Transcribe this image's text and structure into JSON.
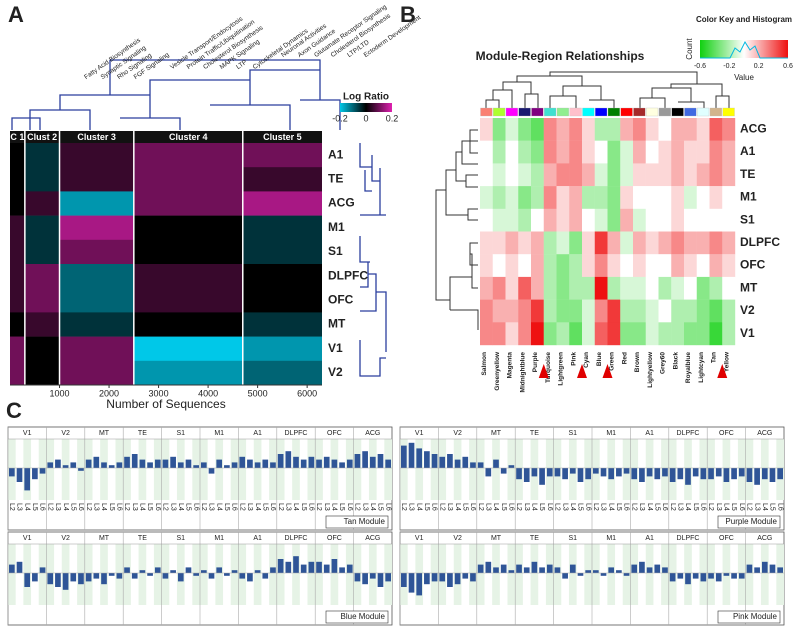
{
  "panels": [
    "A",
    "B",
    "C"
  ],
  "heatmap_a": {
    "annotations": [
      "Fatty Acid Biosynthesis",
      "Synaptic Signaling",
      "Rho Signaling",
      "FGF Signaling",
      "Vesicle Transport/Endocytosis",
      "Protein Traffic/Ubiquitination",
      "Cholesterol Biosynthesis",
      "MAPK Signaling",
      "LTP",
      "Cytoskeletal Dynamics",
      "Neuronal Activities",
      "Axon Guidance",
      "Glutamate Receptor Signaling",
      "Cholesterol Biosynthesis",
      "LTP/LTD",
      "Ectoderm Development"
    ],
    "clusters": [
      {
        "name": "C 1",
        "start": 0,
        "end": 300
      },
      {
        "name": "Clust 2",
        "start": 300,
        "end": 1000
      },
      {
        "name": "Cluster 3",
        "start": 1000,
        "end": 2500
      },
      {
        "name": "Cluster 4",
        "start": 2500,
        "end": 4700
      },
      {
        "name": "Cluster 5",
        "start": 4700,
        "end": 6300
      }
    ],
    "rows": [
      "A1",
      "TE",
      "ACG",
      "M1",
      "S1",
      "DLPFC",
      "OFC",
      "MT",
      "V1",
      "V2"
    ],
    "values": [
      [
        0,
        -0.05,
        0.05,
        0.1,
        0.1
      ],
      [
        0,
        -0.05,
        0.05,
        0.1,
        0.05
      ],
      [
        0,
        0.05,
        -0.15,
        0.1,
        0.15
      ],
      [
        0.05,
        -0.05,
        0.15,
        0,
        -0.05
      ],
      [
        0.05,
        -0.05,
        0.1,
        0,
        -0.05
      ],
      [
        0.05,
        0.1,
        -0.1,
        0.05,
        0
      ],
      [
        0.05,
        0.1,
        -0.1,
        0.05,
        0
      ],
      [
        0,
        0.05,
        -0.05,
        0,
        -0.05
      ],
      [
        0.1,
        0,
        0.1,
        -0.2,
        -0.15
      ],
      [
        0.1,
        0,
        0.1,
        -0.15,
        -0.1
      ]
    ],
    "xlim": [
      0,
      6300
    ],
    "xticks": [
      1000,
      2000,
      3000,
      4000,
      5000,
      6000
    ],
    "xlabel": "Number of Sequences",
    "color_key": {
      "title": "Log Ratio",
      "lim": [
        -0.2,
        0.2
      ],
      "ticks": [
        -0.2,
        0,
        0.2
      ]
    }
  },
  "heatmap_b": {
    "title": "Module-Region Relationships",
    "modules": [
      "Salmon",
      "Greenyellow",
      "Magenta",
      "Midnightblue",
      "Purple",
      "Turquoise",
      "Lightgreen",
      "Pink",
      "Cyan",
      "Blue",
      "Green",
      "Red",
      "Brown",
      "Lightyellow",
      "Grey60",
      "Black",
      "Royalblue",
      "Lightcyan",
      "Tan",
      "Yellow"
    ],
    "module_colors": [
      "#fa8072",
      "#adff2f",
      "#ff00ff",
      "#191970",
      "#800080",
      "#40e0d0",
      "#90ee90",
      "#ffc0cb",
      "#00ffff",
      "#0000ff",
      "#008000",
      "#ff0000",
      "#a52a2a",
      "#ffffe0",
      "#999999",
      "#000000",
      "#4169e1",
      "#e0ffff",
      "#d2b48c",
      "#ffff00"
    ],
    "highlighted": [
      4,
      7,
      9,
      18
    ],
    "rows": [
      "ACG",
      "A1",
      "TE",
      "M1",
      "S1",
      "DLPFC",
      "OFC",
      "MT",
      "V2",
      "V1"
    ],
    "values": [
      [
        0.1,
        -0.3,
        -0.1,
        -0.3,
        -0.4,
        0.3,
        0.2,
        0.3,
        0.1,
        -0.2,
        -0.2,
        0.2,
        0.3,
        0.1,
        0,
        0.2,
        0.2,
        0.1,
        0.4,
        0.3
      ],
      [
        0,
        -0.2,
        0,
        -0.2,
        -0.3,
        0.3,
        0.2,
        0.3,
        0.1,
        0,
        -0.3,
        -0.1,
        0.2,
        0,
        0.1,
        0.2,
        0.1,
        0.1,
        0.3,
        0.2
      ],
      [
        0,
        -0.1,
        0,
        -0.1,
        -0.2,
        0.2,
        0.3,
        0.3,
        0.2,
        -0.1,
        -0.3,
        -0.1,
        0.1,
        0.1,
        0.1,
        0.2,
        0.1,
        0.2,
        0.3,
        0.2
      ],
      [
        -0.1,
        -0.2,
        -0.1,
        -0.3,
        -0.2,
        0.3,
        0.1,
        0.2,
        -0.2,
        -0.2,
        -0.3,
        0.1,
        0,
        0,
        0,
        0.1,
        -0.1,
        0,
        0.1,
        0
      ],
      [
        0,
        -0.1,
        -0.1,
        -0.2,
        0,
        0.2,
        0.1,
        0.2,
        0,
        -0.1,
        -0.3,
        0.2,
        -0.1,
        0,
        0,
        0.1,
        0,
        0,
        0,
        0
      ],
      [
        0.1,
        0.1,
        0.2,
        0.1,
        0.2,
        -0.2,
        -0.1,
        -0.3,
        0.1,
        0.5,
        0.2,
        -0.1,
        0.2,
        0.1,
        0.2,
        0.3,
        0.2,
        0.2,
        0.3,
        0.2
      ],
      [
        0.1,
        0,
        0.1,
        0,
        0.2,
        -0.2,
        -0.3,
        -0.2,
        0.1,
        0.3,
        0.1,
        0,
        0.1,
        0,
        0,
        0.2,
        0.1,
        0,
        0.2,
        0.1
      ],
      [
        0.2,
        0.3,
        0.1,
        0.4,
        0.2,
        -0.2,
        -0.3,
        -0.2,
        -0.2,
        0.6,
        -0.2,
        -0.1,
        -0.1,
        0,
        -0.2,
        -0.1,
        0,
        -0.3,
        -0.2,
        0
      ],
      [
        0.3,
        0.2,
        0.2,
        0.3,
        0.5,
        -0.2,
        -0.3,
        -0.3,
        -0.1,
        0.3,
        0.5,
        -0.2,
        -0.2,
        -0.1,
        0,
        -0.2,
        -0.2,
        -0.3,
        -0.4,
        -0.2
      ],
      [
        0.3,
        0.3,
        0.1,
        0.3,
        0.6,
        -0.3,
        -0.2,
        -0.4,
        -0.1,
        0.4,
        0.5,
        -0.3,
        -0.3,
        -0.1,
        -0.2,
        -0.2,
        -0.3,
        -0.3,
        -0.5,
        -0.2
      ]
    ],
    "color_key": {
      "title": "Color Key and Histogram",
      "ylabel": "Count",
      "xlabel": "Value",
      "lim": [
        -0.6,
        0.6
      ],
      "ticks": [
        -0.6,
        -0.2,
        0.2,
        0.6
      ]
    }
  },
  "bars_c": {
    "areas": [
      "V1",
      "V2",
      "MT",
      "TE",
      "S1",
      "M1",
      "A1",
      "DLPFC",
      "OFC",
      "ACG"
    ],
    "layers": [
      "L2",
      "L3",
      "L4",
      "L5",
      "L6"
    ],
    "ylim": [
      -1,
      1
    ],
    "modules": [
      {
        "name": "Tan Module",
        "values": [
          [
            -0.3,
            -0.5,
            -0.8,
            -0.4,
            -0.2
          ],
          [
            0.2,
            0.3,
            0.1,
            0.2,
            -0.1
          ],
          [
            0.3,
            0.4,
            0.2,
            0.1,
            0.2
          ],
          [
            0.4,
            0.5,
            0.3,
            0.2,
            0.3
          ],
          [
            0.3,
            0.4,
            0.2,
            0.3,
            0.1
          ],
          [
            0.2,
            -0.2,
            0.3,
            0.1,
            0.2
          ],
          [
            0.4,
            0.3,
            0.2,
            0.3,
            0.2
          ],
          [
            0.5,
            0.6,
            0.4,
            0.3,
            0.4
          ],
          [
            0.3,
            0.4,
            0.3,
            0.2,
            0.3
          ],
          [
            0.5,
            0.6,
            0.4,
            0.5,
            0.3
          ]
        ]
      },
      {
        "name": "Purple Module",
        "values": [
          [
            0.8,
            0.9,
            0.7,
            0.6,
            0.5
          ],
          [
            0.4,
            0.5,
            0.3,
            0.4,
            0.2
          ],
          [
            0.2,
            -0.3,
            0.3,
            -0.2,
            0.1
          ],
          [
            -0.4,
            -0.5,
            -0.3,
            -0.6,
            -0.3
          ],
          [
            -0.3,
            -0.4,
            -0.2,
            -0.5,
            -0.4
          ],
          [
            -0.2,
            -0.3,
            -0.4,
            -0.3,
            -0.2
          ],
          [
            -0.4,
            -0.5,
            -0.3,
            -0.4,
            -0.3
          ],
          [
            -0.5,
            -0.4,
            -0.6,
            -0.3,
            -0.4
          ],
          [
            -0.4,
            -0.3,
            -0.5,
            -0.4,
            -0.3
          ],
          [
            -0.5,
            -0.6,
            -0.4,
            -0.5,
            -0.4
          ]
        ]
      },
      {
        "name": "Blue Module",
        "values": [
          [
            0.3,
            0.4,
            -0.5,
            -0.3,
            0.2
          ],
          [
            -0.4,
            -0.5,
            -0.6,
            -0.3,
            -0.4
          ],
          [
            -0.3,
            -0.2,
            -0.4,
            -0.1,
            -0.2
          ],
          [
            0.2,
            -0.2,
            0.1,
            -0.1,
            0.2
          ],
          [
            -0.2,
            0.1,
            -0.3,
            0.2,
            -0.1
          ],
          [
            0.1,
            -0.2,
            0.2,
            -0.1,
            0.1
          ],
          [
            -0.2,
            -0.3,
            0.1,
            -0.2,
            0.2
          ],
          [
            0.5,
            0.4,
            0.6,
            0.3,
            0.4
          ],
          [
            0.4,
            0.3,
            0.5,
            0.2,
            0.3
          ],
          [
            -0.3,
            -0.4,
            -0.2,
            -0.5,
            -0.3
          ]
        ]
      },
      {
        "name": "Pink Module",
        "values": [
          [
            -0.5,
            -0.7,
            -0.8,
            -0.4,
            -0.3
          ],
          [
            -0.3,
            -0.5,
            -0.4,
            -0.2,
            -0.3
          ],
          [
            0.3,
            0.4,
            0.2,
            0.3,
            0.1
          ],
          [
            0.3,
            0.2,
            0.4,
            0.2,
            0.3
          ],
          [
            0.2,
            -0.2,
            0.3,
            -0.1,
            0.1
          ],
          [
            0.1,
            -0.1,
            0.2,
            0.1,
            -0.1
          ],
          [
            0.3,
            0.4,
            0.2,
            0.3,
            0.2
          ],
          [
            -0.3,
            -0.2,
            -0.4,
            -0.2,
            -0.3
          ],
          [
            -0.2,
            -0.3,
            -0.1,
            -0.2,
            -0.2
          ],
          [
            0.3,
            0.2,
            0.4,
            0.3,
            0.2
          ]
        ]
      }
    ]
  }
}
